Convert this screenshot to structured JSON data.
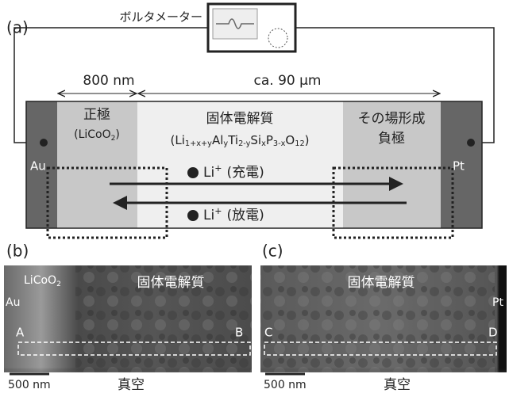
{
  "panel_a": {
    "label": "(a)",
    "voltmeter": "ボルタメーター",
    "dim_cathode": "800 nm",
    "dim_electrolyte": "ca. 90 μm",
    "cathode": {
      "title": "正極",
      "formula": [
        "(LiCoO",
        "2",
        ")"
      ]
    },
    "electrolyte": {
      "title": "固体電解質",
      "formula": [
        "(Li",
        "1+x+y",
        "Al",
        "y",
        "Ti",
        "2-y",
        "Si",
        "x",
        "P",
        "3-x",
        "O",
        "12",
        ")"
      ]
    },
    "anode": {
      "line1": "その場形成",
      "line2": "負極"
    },
    "left_electrode": "Au",
    "right_electrode": "Pt",
    "charge": {
      "ion": [
        "Li",
        "+"
      ],
      "text": "(充電)"
    },
    "discharge": {
      "ion": [
        "Li",
        "+"
      ],
      "text": "(放電)"
    }
  },
  "panel_b": {
    "label": "(b)",
    "cathode": [
      "LiCoO",
      "2"
    ],
    "electrolyte": "固体電解質",
    "electrode": "Au",
    "start": "A",
    "end": "B",
    "scale": "500 nm",
    "vacuum": "真空"
  },
  "panel_c": {
    "label": "(c)",
    "electrolyte": "固体電解質",
    "electrode": "Pt",
    "start": "C",
    "end": "D",
    "scale": "500 nm",
    "vacuum": "真空"
  }
}
